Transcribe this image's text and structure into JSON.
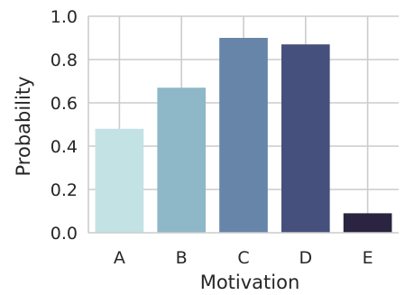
{
  "chart_data": {
    "type": "bar",
    "title": "",
    "xlabel": "Motivation",
    "ylabel": "Probability",
    "categories": [
      "A",
      "B",
      "C",
      "D",
      "E"
    ],
    "values": [
      0.48,
      0.67,
      0.9,
      0.87,
      0.09
    ],
    "colors": [
      "#c3e2e3",
      "#8eb8c8",
      "#6685a9",
      "#46507c",
      "#2a2441"
    ],
    "ylim": [
      0,
      1.0
    ],
    "yticks": [
      0.0,
      0.2,
      0.4,
      0.6,
      0.8,
      1.0
    ],
    "ytick_labels": [
      "0.0",
      "0.2",
      "0.4",
      "0.6",
      "0.8",
      "1.0"
    ],
    "grid": true,
    "grid_color": "#cccccc",
    "legend": "none"
  }
}
